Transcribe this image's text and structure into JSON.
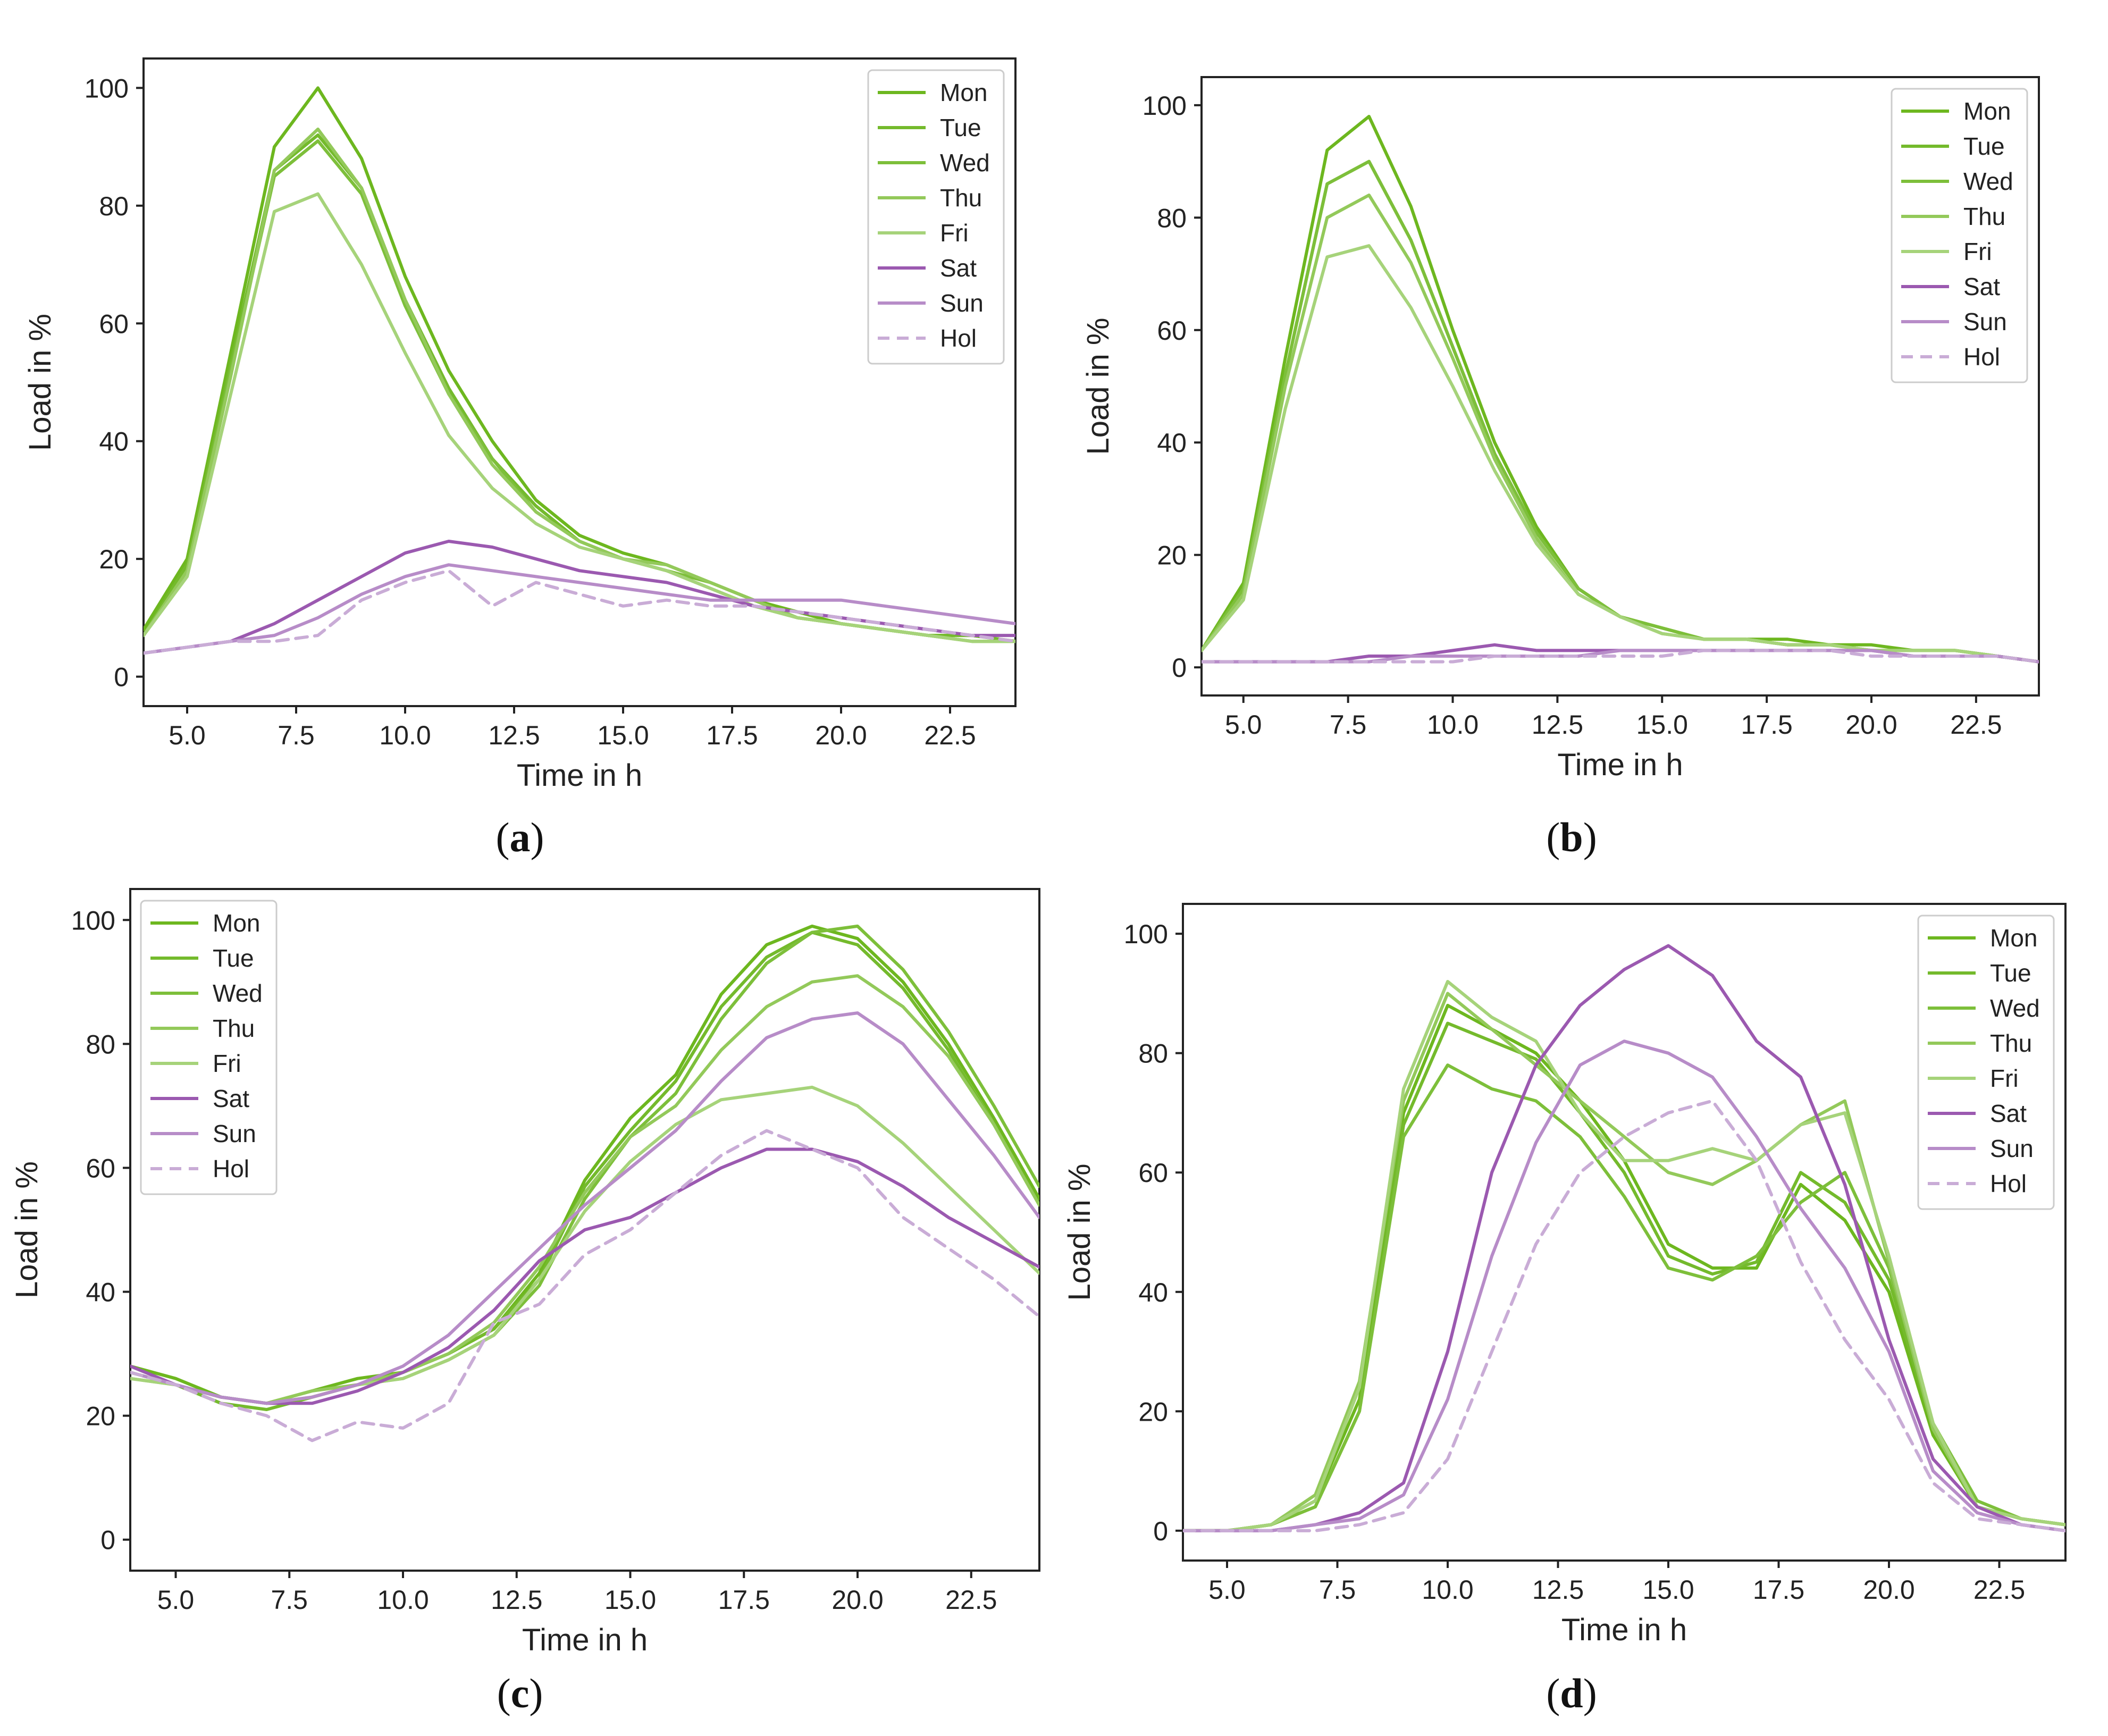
{
  "colors": {
    "Mon": "#6db71f",
    "Tue": "#74ba2c",
    "Wed": "#7dbf3a",
    "Thu": "#93c95a",
    "Fri": "#a6d37a",
    "Sat": "#9b59b0",
    "Sun": "#b78cc8",
    "Hol": "#c9acd6",
    "axis": "#222222",
    "text": "#222222"
  },
  "chart_data": [
    {
      "panel": "a",
      "caption": "a",
      "type": "line",
      "xlabel": "Time in h",
      "ylabel": "Load in %",
      "xlim": [
        4,
        24
      ],
      "ylim": [
        -5,
        105
      ],
      "xticks": [
        "5.0",
        "7.5",
        "10.0",
        "12.5",
        "15.0",
        "17.5",
        "20.0",
        "22.5"
      ],
      "yticks": [
        "0",
        "20",
        "40",
        "60",
        "80",
        "100"
      ],
      "legend_position": "top-right",
      "x": [
        4,
        5,
        6,
        7,
        8,
        9,
        10,
        11,
        12,
        13,
        14,
        15,
        16,
        17,
        18,
        19,
        20,
        21,
        22,
        23,
        24
      ],
      "series": [
        {
          "name": "Mon",
          "values": [
            8,
            20,
            55,
            90,
            100,
            88,
            68,
            52,
            40,
            30,
            24,
            21,
            19,
            16,
            13,
            11,
            9,
            8,
            7,
            7,
            6
          ]
        },
        {
          "name": "Tue",
          "values": [
            7,
            19,
            53,
            86,
            92,
            83,
            64,
            49,
            37,
            29,
            23,
            20,
            18,
            15,
            12,
            10,
            9,
            8,
            7,
            7,
            6
          ]
        },
        {
          "name": "Wed",
          "values": [
            7,
            18,
            52,
            85,
            91,
            82,
            63,
            48,
            37,
            28,
            23,
            20,
            18,
            16,
            13,
            10,
            9,
            8,
            7,
            6,
            6
          ]
        },
        {
          "name": "Thu",
          "values": [
            7,
            18,
            51,
            86,
            93,
            83,
            64,
            48,
            36,
            28,
            23,
            20,
            19,
            16,
            13,
            10,
            9,
            8,
            7,
            6,
            6
          ]
        },
        {
          "name": "Fri",
          "values": [
            7,
            17,
            48,
            79,
            82,
            70,
            55,
            41,
            32,
            26,
            22,
            20,
            18,
            15,
            12,
            10,
            9,
            8,
            7,
            6,
            6
          ]
        },
        {
          "name": "Sat",
          "values": [
            4,
            5,
            6,
            9,
            13,
            17,
            21,
            23,
            22,
            20,
            18,
            17,
            16,
            14,
            12,
            11,
            10,
            9,
            8,
            7,
            7
          ]
        },
        {
          "name": "Sun",
          "values": [
            4,
            5,
            6,
            7,
            10,
            14,
            17,
            19,
            18,
            17,
            16,
            15,
            14,
            13,
            13,
            13,
            13,
            12,
            11,
            10,
            9
          ]
        },
        {
          "name": "Hol",
          "values": [
            4,
            5,
            6,
            6,
            7,
            13,
            16,
            18,
            12,
            16,
            14,
            12,
            13,
            12,
            12,
            11,
            10,
            9,
            8,
            7,
            6
          ]
        }
      ]
    },
    {
      "panel": "b",
      "caption": "b",
      "type": "line",
      "xlabel": "Time in h",
      "ylabel": "Load in %",
      "xlim": [
        4,
        24
      ],
      "ylim": [
        -5,
        105
      ],
      "xticks": [
        "5.0",
        "7.5",
        "10.0",
        "12.5",
        "15.0",
        "17.5",
        "20.0",
        "22.5"
      ],
      "yticks": [
        "0",
        "20",
        "40",
        "60",
        "80",
        "100"
      ],
      "legend_position": "top-right",
      "x": [
        4,
        5,
        6,
        7,
        8,
        9,
        10,
        11,
        12,
        13,
        14,
        15,
        16,
        17,
        18,
        19,
        20,
        21,
        22,
        23,
        24
      ],
      "series": [
        {
          "name": "Mon",
          "values": [
            3,
            15,
            55,
            92,
            98,
            82,
            60,
            40,
            25,
            14,
            9,
            7,
            5,
            5,
            5,
            4,
            4,
            3,
            3,
            2,
            1
          ]
        },
        {
          "name": "Tue",
          "values": [
            3,
            14,
            52,
            86,
            90,
            76,
            57,
            38,
            24,
            14,
            9,
            7,
            5,
            5,
            4,
            4,
            3,
            3,
            3,
            2,
            1
          ]
        },
        {
          "name": "Wed",
          "values": [
            3,
            14,
            52,
            86,
            90,
            76,
            57,
            38,
            24,
            14,
            9,
            7,
            5,
            5,
            4,
            4,
            3,
            3,
            3,
            2,
            1
          ]
        },
        {
          "name": "Thu",
          "values": [
            3,
            13,
            50,
            80,
            84,
            72,
            55,
            37,
            23,
            13,
            9,
            6,
            5,
            5,
            4,
            4,
            3,
            3,
            3,
            2,
            1
          ]
        },
        {
          "name": "Fri",
          "values": [
            3,
            12,
            46,
            73,
            75,
            64,
            50,
            35,
            22,
            13,
            9,
            6,
            5,
            5,
            4,
            4,
            3,
            3,
            3,
            2,
            1
          ]
        },
        {
          "name": "Sat",
          "values": [
            1,
            1,
            1,
            1,
            2,
            2,
            3,
            4,
            3,
            3,
            3,
            3,
            3,
            3,
            3,
            3,
            3,
            2,
            2,
            2,
            1
          ]
        },
        {
          "name": "Sun",
          "values": [
            1,
            1,
            1,
            1,
            1,
            2,
            2,
            2,
            2,
            2,
            3,
            3,
            3,
            3,
            3,
            3,
            3,
            2,
            2,
            2,
            1
          ]
        },
        {
          "name": "Hol",
          "values": [
            1,
            1,
            1,
            1,
            1,
            1,
            1,
            2,
            2,
            2,
            2,
            2,
            3,
            3,
            3,
            3,
            2,
            2,
            2,
            2,
            1
          ]
        }
      ]
    },
    {
      "panel": "c",
      "caption": "c",
      "type": "line",
      "xlabel": "Time in h",
      "ylabel": "Load in %",
      "xlim": [
        4,
        24
      ],
      "ylim": [
        -5,
        105
      ],
      "xticks": [
        "5.0",
        "7.5",
        "10.0",
        "12.5",
        "15.0",
        "17.5",
        "20.0",
        "22.5"
      ],
      "yticks": [
        "0",
        "20",
        "40",
        "60",
        "80",
        "100"
      ],
      "legend_position": "top-left",
      "x": [
        4,
        5,
        6,
        7,
        8,
        9,
        10,
        11,
        12,
        13,
        14,
        15,
        16,
        17,
        18,
        19,
        20,
        21,
        22,
        23,
        24
      ],
      "series": [
        {
          "name": "Mon",
          "values": [
            28,
            26,
            23,
            22,
            24,
            26,
            27,
            30,
            34,
            43,
            58,
            68,
            75,
            88,
            96,
            99,
            97,
            90,
            80,
            68,
            55
          ]
        },
        {
          "name": "Tue",
          "values": [
            27,
            25,
            22,
            21,
            23,
            25,
            27,
            30,
            34,
            42,
            57,
            66,
            74,
            86,
            94,
            98,
            96,
            89,
            79,
            67,
            54
          ]
        },
        {
          "name": "Wed",
          "values": [
            27,
            25,
            23,
            22,
            23,
            25,
            26,
            29,
            33,
            41,
            55,
            65,
            72,
            84,
            93,
            98,
            99,
            92,
            82,
            70,
            57
          ]
        },
        {
          "name": "Thu",
          "values": [
            26,
            25,
            23,
            22,
            24,
            25,
            27,
            30,
            35,
            44,
            56,
            65,
            70,
            79,
            86,
            90,
            91,
            86,
            78,
            67,
            54
          ]
        },
        {
          "name": "Fri",
          "values": [
            26,
            25,
            23,
            22,
            23,
            25,
            26,
            29,
            33,
            42,
            53,
            61,
            67,
            71,
            72,
            73,
            70,
            64,
            57,
            50,
            43
          ]
        },
        {
          "name": "Sat",
          "values": [
            28,
            25,
            23,
            22,
            22,
            24,
            27,
            31,
            37,
            45,
            50,
            52,
            56,
            60,
            63,
            63,
            61,
            57,
            52,
            48,
            44
          ]
        },
        {
          "name": "Sun",
          "values": [
            27,
            25,
            23,
            22,
            23,
            25,
            28,
            33,
            40,
            47,
            54,
            60,
            66,
            74,
            81,
            84,
            85,
            80,
            71,
            62,
            52
          ]
        },
        {
          "name": "Hol",
          "values": [
            27,
            25,
            22,
            20,
            16,
            19,
            18,
            22,
            35,
            38,
            46,
            50,
            56,
            62,
            66,
            63,
            60,
            52,
            47,
            42,
            36
          ]
        }
      ]
    },
    {
      "panel": "d",
      "caption": "d",
      "type": "line",
      "xlabel": "Time in h",
      "ylabel": "Load in %",
      "xlim": [
        4,
        24
      ],
      "ylim": [
        -5,
        105
      ],
      "xticks": [
        "5.0",
        "7.5",
        "10.0",
        "12.5",
        "15.0",
        "17.5",
        "20.0",
        "22.5"
      ],
      "yticks": [
        "0",
        "20",
        "40",
        "60",
        "80",
        "100"
      ],
      "legend_position": "top-right",
      "x": [
        4,
        5,
        6,
        7,
        8,
        9,
        10,
        11,
        12,
        13,
        14,
        15,
        16,
        17,
        18,
        19,
        20,
        21,
        22,
        23,
        24
      ],
      "series": [
        {
          "name": "Mon",
          "values": [
            0,
            0,
            1,
            5,
            22,
            70,
            88,
            84,
            80,
            72,
            62,
            48,
            44,
            44,
            58,
            52,
            40,
            16,
            4,
            2,
            1
          ]
        },
        {
          "name": "Tue",
          "values": [
            0,
            0,
            1,
            4,
            20,
            68,
            85,
            82,
            79,
            70,
            60,
            46,
            43,
            45,
            60,
            55,
            42,
            17,
            4,
            2,
            1
          ]
        },
        {
          "name": "Wed",
          "values": [
            0,
            0,
            1,
            4,
            20,
            66,
            78,
            74,
            72,
            66,
            56,
            44,
            42,
            46,
            55,
            60,
            44,
            18,
            5,
            2,
            1
          ]
        },
        {
          "name": "Thu",
          "values": [
            0,
            0,
            1,
            6,
            25,
            72,
            90,
            84,
            78,
            72,
            66,
            60,
            58,
            62,
            68,
            72,
            45,
            17,
            4,
            2,
            1
          ]
        },
        {
          "name": "Fri",
          "values": [
            0,
            0,
            1,
            5,
            24,
            74,
            92,
            86,
            82,
            70,
            62,
            62,
            64,
            62,
            68,
            70,
            46,
            18,
            4,
            2,
            1
          ]
        },
        {
          "name": "Sat",
          "values": [
            0,
            0,
            0,
            1,
            3,
            8,
            30,
            60,
            78,
            88,
            94,
            98,
            93,
            82,
            76,
            58,
            32,
            12,
            4,
            1,
            0
          ]
        },
        {
          "name": "Sun",
          "values": [
            0,
            0,
            0,
            1,
            2,
            6,
            22,
            46,
            65,
            78,
            82,
            80,
            76,
            66,
            54,
            44,
            30,
            10,
            3,
            1,
            0
          ]
        },
        {
          "name": "Hol",
          "values": [
            0,
            0,
            0,
            0,
            1,
            3,
            12,
            30,
            48,
            60,
            66,
            70,
            72,
            62,
            45,
            32,
            22,
            8,
            2,
            1,
            0
          ]
        }
      ]
    }
  ]
}
